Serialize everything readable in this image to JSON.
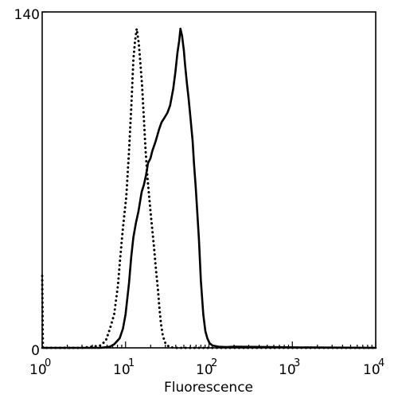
{
  "chart_data": {
    "type": "line",
    "title": "",
    "xlabel": "Fluorescence",
    "ylabel": "",
    "x_scale": "log",
    "xlim": [
      1,
      10000
    ],
    "ylim": [
      0,
      140
    ],
    "grid": false,
    "x_ticks": [
      {
        "base": "10",
        "exp": "0",
        "value": 1
      },
      {
        "base": "10",
        "exp": "1",
        "value": 10
      },
      {
        "base": "10",
        "exp": "2",
        "value": 100
      },
      {
        "base": "10",
        "exp": "3",
        "value": 1000
      },
      {
        "base": "10",
        "exp": "4",
        "value": 10000
      }
    ],
    "y_ticks": [
      {
        "label": "0",
        "value": 0
      },
      {
        "label": "140",
        "value": 140
      }
    ],
    "series": [
      {
        "style": "dotted",
        "color": "#000000",
        "points": [
          [
            1.0,
            30
          ],
          [
            1.02,
            0
          ],
          [
            1.2,
            0
          ],
          [
            2.0,
            0
          ],
          [
            3.0,
            0
          ],
          [
            4.0,
            0.5
          ],
          [
            5.0,
            1
          ],
          [
            5.8,
            3
          ],
          [
            6.5,
            8
          ],
          [
            7.3,
            14
          ],
          [
            8.1,
            26
          ],
          [
            8.6,
            37
          ],
          [
            9.3,
            50
          ],
          [
            10.2,
            63
          ],
          [
            11.0,
            82
          ],
          [
            11.7,
            100
          ],
          [
            12.4,
            120
          ],
          [
            13.0,
            128
          ],
          [
            13.6,
            133
          ],
          [
            14.4,
            127
          ],
          [
            15.1,
            118
          ],
          [
            15.8,
            109
          ],
          [
            16.5,
            97
          ],
          [
            17.4,
            82
          ],
          [
            18.3,
            71
          ],
          [
            19.3,
            62
          ],
          [
            20.4,
            53
          ],
          [
            21.8,
            43
          ],
          [
            23.1,
            33
          ],
          [
            24.5,
            24
          ],
          [
            25.4,
            17
          ],
          [
            26.6,
            10
          ],
          [
            28.0,
            5
          ],
          [
            30.0,
            2
          ],
          [
            33.0,
            0.5
          ],
          [
            38.0,
            0
          ],
          [
            100,
            0
          ],
          [
            10000,
            0
          ]
        ]
      },
      {
        "style": "solid",
        "color": "#000000",
        "points": [
          [
            1.0,
            0
          ],
          [
            3.0,
            0
          ],
          [
            5.0,
            0
          ],
          [
            6.5,
            0.5
          ],
          [
            7.3,
            1.5
          ],
          [
            8.5,
            4
          ],
          [
            9.3,
            8
          ],
          [
            10.0,
            14
          ],
          [
            11.0,
            27
          ],
          [
            11.7,
            38
          ],
          [
            12.4,
            46
          ],
          [
            13.3,
            52
          ],
          [
            14.3,
            57
          ],
          [
            15.6,
            65
          ],
          [
            16.6,
            68
          ],
          [
            17.6,
            72
          ],
          [
            18.6,
            77
          ],
          [
            19.9,
            79
          ],
          [
            20.9,
            82
          ],
          [
            22.9,
            86
          ],
          [
            25.2,
            91
          ],
          [
            27.0,
            94
          ],
          [
            29.4,
            96
          ],
          [
            31.8,
            98
          ],
          [
            34.2,
            101
          ],
          [
            37.3,
            108
          ],
          [
            39.6,
            115
          ],
          [
            41.9,
            123
          ],
          [
            44.0,
            128
          ],
          [
            45.5,
            133
          ],
          [
            47.6,
            130
          ],
          [
            50.0,
            124
          ],
          [
            51.7,
            118
          ],
          [
            54.5,
            110
          ],
          [
            57.0,
            104
          ],
          [
            60.0,
            96
          ],
          [
            63.8,
            86
          ],
          [
            66.1,
            77
          ],
          [
            69.4,
            67
          ],
          [
            72.0,
            58
          ],
          [
            75.9,
            45
          ],
          [
            80.0,
            28
          ],
          [
            85.5,
            14
          ],
          [
            90.5,
            7
          ],
          [
            95.6,
            4
          ],
          [
            101.5,
            2
          ],
          [
            110.0,
            1
          ],
          [
            130.0,
            0.5
          ],
          [
            160.0,
            0.3
          ],
          [
            200.0,
            0.5
          ],
          [
            350.0,
            0.4
          ],
          [
            600.0,
            0.3
          ],
          [
            1000.0,
            0.2
          ],
          [
            3000.0,
            0.1
          ],
          [
            10000.0,
            0
          ]
        ]
      }
    ]
  }
}
